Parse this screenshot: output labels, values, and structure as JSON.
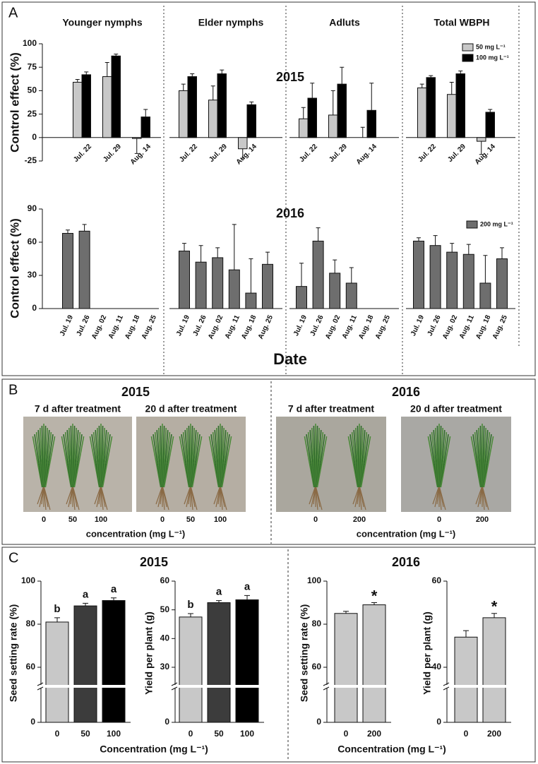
{
  "panel_labels": [
    "A",
    "B",
    "C"
  ],
  "chart_data": [
    {
      "type": "bar",
      "title": "2015",
      "ylabel": "Control effect (%)",
      "ylim": [
        -25,
        100
      ],
      "yticks": [
        -25,
        0,
        25,
        50,
        75,
        100
      ],
      "legend": "upper right",
      "groups": [
        "Younger nymphs",
        "Elder nymphs",
        "Adluts",
        "Total WBPH"
      ],
      "categories": [
        [
          "Jul. 22",
          "Jul. 29",
          "Aug. 14"
        ],
        [
          "Jul. 22",
          "Jul. 29",
          "Aug. 14"
        ],
        [
          "Jul. 22",
          "Jul. 29",
          "Aug. 14"
        ],
        [
          "Jul. 22",
          "Jul. 29",
          "Aug. 14"
        ]
      ],
      "series": [
        {
          "name": "50 mg L⁻¹",
          "color": "#c8c8c8",
          "values": [
            [
              59,
              65,
              -1
            ],
            [
              50,
              40,
              -12
            ],
            [
              20,
              24,
              0
            ],
            [
              53,
              46,
              -4
            ]
          ],
          "errors": [
            [
              3,
              15,
              16
            ],
            [
              7,
              15,
              10
            ],
            [
              12,
              26,
              11
            ],
            [
              4,
              13,
              14
            ]
          ]
        },
        {
          "name": "100 mg L⁻¹",
          "color": "#000000",
          "values": [
            [
              67,
              87,
              22
            ],
            [
              65,
              68,
              35
            ],
            [
              42,
              57,
              29
            ],
            [
              64,
              68,
              27
            ]
          ],
          "errors": [
            [
              3,
              2,
              8
            ],
            [
              3,
              4,
              3
            ],
            [
              16,
              18,
              29
            ],
            [
              2,
              3,
              3
            ]
          ]
        }
      ]
    },
    {
      "type": "bar",
      "title": "2016",
      "ylabel": "Control effect (%)",
      "xlabel": "Date",
      "ylim": [
        0,
        90
      ],
      "yticks": [
        0,
        30,
        60,
        90
      ],
      "legend": "upper right",
      "categories": [
        [
          "Jul. 19",
          "Jul. 26",
          "Aug. 02",
          "Aug. 11",
          "Aug. 18",
          "Aug. 25"
        ],
        [
          "Jul. 19",
          "Jul. 26",
          "Aug. 02",
          "Aug. 11",
          "Aug. 18",
          "Aug. 25"
        ],
        [
          "Jul. 19",
          "Jul. 26",
          "Aug. 02",
          "Aug. 11",
          "Aug. 18",
          "Aug. 25"
        ],
        [
          "Jul. 19",
          "Jul. 26",
          "Aug. 02",
          "Aug. 11",
          "Aug. 18",
          "Aug. 25"
        ]
      ],
      "series": [
        {
          "name": "200 mg L⁻¹",
          "color": "#6e6e6e",
          "values": [
            [
              68,
              70,
              null,
              null,
              null,
              null
            ],
            [
              52,
              42,
              46,
              35,
              14,
              40
            ],
            [
              20,
              61,
              32,
              23,
              null,
              null
            ],
            [
              61,
              57,
              51,
              49,
              23,
              45
            ]
          ],
          "errors": [
            [
              3,
              6,
              null,
              null,
              null,
              null
            ],
            [
              7,
              15,
              9,
              41,
              31,
              11
            ],
            [
              21,
              12,
              12,
              14,
              null,
              null
            ],
            [
              3,
              9,
              8,
              9,
              25,
              10
            ]
          ]
        }
      ]
    },
    {
      "type": "bar",
      "title": "2015",
      "ylabel": "Seed setting rate (%)",
      "xlabel": "Concentration (mg L⁻¹)",
      "categories": [
        "0",
        "50",
        "100"
      ],
      "values": [
        81,
        88.5,
        91
      ],
      "errors": [
        2,
        1.2,
        1.2
      ],
      "colors": [
        "#c8c8c8",
        "#3c3c3c",
        "#000000"
      ],
      "annotations": [
        "b",
        "a",
        "a"
      ],
      "ylim": [
        0,
        100
      ],
      "yticks": [
        0,
        60,
        80,
        100
      ],
      "axis_break": true
    },
    {
      "type": "bar",
      "ylabel": "Yield per plant (g)",
      "categories": [
        "0",
        "50",
        "100"
      ],
      "values": [
        47.5,
        52.5,
        53.5
      ],
      "errors": [
        1.2,
        0.7,
        1.5
      ],
      "colors": [
        "#c8c8c8",
        "#3c3c3c",
        "#000000"
      ],
      "annotations": [
        "b",
        "a",
        "a"
      ],
      "ylim": [
        0,
        60
      ],
      "yticks": [
        0,
        30,
        40,
        50,
        60
      ],
      "axis_break": true
    },
    {
      "type": "bar",
      "title": "2016",
      "ylabel": "Seed setting rate (%)",
      "xlabel": "Concentration (mg L⁻¹)",
      "categories": [
        "0",
        "200"
      ],
      "values": [
        85,
        89
      ],
      "errors": [
        1,
        1
      ],
      "colors": [
        "#c8c8c8",
        "#c8c8c8"
      ],
      "annotations": [
        null,
        "*"
      ],
      "ylim": [
        0,
        100
      ],
      "yticks": [
        0,
        60,
        80,
        100
      ],
      "axis_break": true
    },
    {
      "type": "bar",
      "ylabel": "Yield per plant (g)",
      "categories": [
        "0",
        "200"
      ],
      "values": [
        47,
        51.5
      ],
      "errors": [
        1.5,
        1
      ],
      "colors": [
        "#c8c8c8",
        "#c8c8c8"
      ],
      "annotations": [
        null,
        "*"
      ],
      "ylim": [
        0,
        60
      ],
      "yticks": [
        0,
        40,
        60
      ],
      "axis_break": true
    }
  ],
  "photo_panel": {
    "groups": [
      {
        "title": "2015",
        "xlabel": "concentration (mg L⁻¹)",
        "photos": [
          {
            "caption": "7 d after treatment",
            "ticks": [
              0,
              50,
              100
            ]
          },
          {
            "caption": "20 d after treatment",
            "ticks": [
              0,
              50,
              100
            ]
          }
        ]
      },
      {
        "title": "2016",
        "xlabel": "concentration (mg L⁻¹)",
        "photos": [
          {
            "caption": "7 d after treatment",
            "ticks": [
              0,
              200
            ]
          },
          {
            "caption": "20 d after treatment",
            "ticks": [
              0,
              200
            ]
          }
        ]
      }
    ]
  }
}
